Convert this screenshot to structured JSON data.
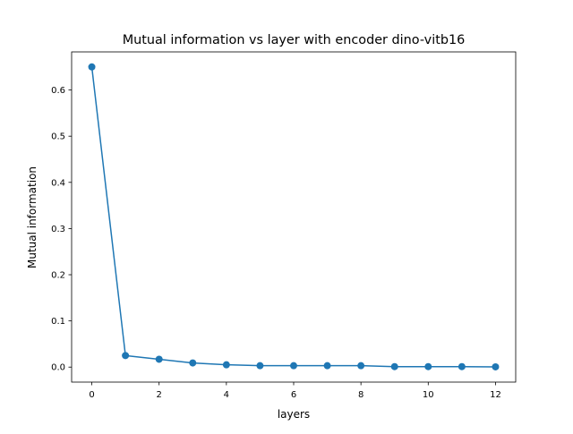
{
  "chart_data": {
    "type": "line",
    "title": "Mutual information vs layer with encoder dino-vitb16",
    "xlabel": "layers",
    "ylabel": "Mutual information",
    "xlim": [
      -0.6,
      12.6
    ],
    "ylim": [
      -0.0325,
      0.6825
    ],
    "x_ticks": [
      0,
      2,
      4,
      6,
      8,
      10,
      12
    ],
    "y_ticks": [
      0.0,
      0.1,
      0.2,
      0.3,
      0.4,
      0.5,
      0.6
    ],
    "x_tick_labels": [
      "0",
      "2",
      "4",
      "6",
      "8",
      "10",
      "12"
    ],
    "y_tick_labels": [
      "0.0",
      "0.1",
      "0.2",
      "0.3",
      "0.4",
      "0.5",
      "0.6"
    ],
    "grid": false,
    "series": [
      {
        "color": "#1f77b4",
        "marker": "circle",
        "x": [
          0,
          1,
          2,
          3,
          4,
          5,
          6,
          7,
          8,
          9,
          10,
          11,
          12
        ],
        "y": [
          0.65,
          0.025,
          0.017,
          0.009,
          0.005,
          0.003,
          0.003,
          0.003,
          0.003,
          0.001,
          0.001,
          0.001,
          0.0005
        ]
      }
    ]
  }
}
